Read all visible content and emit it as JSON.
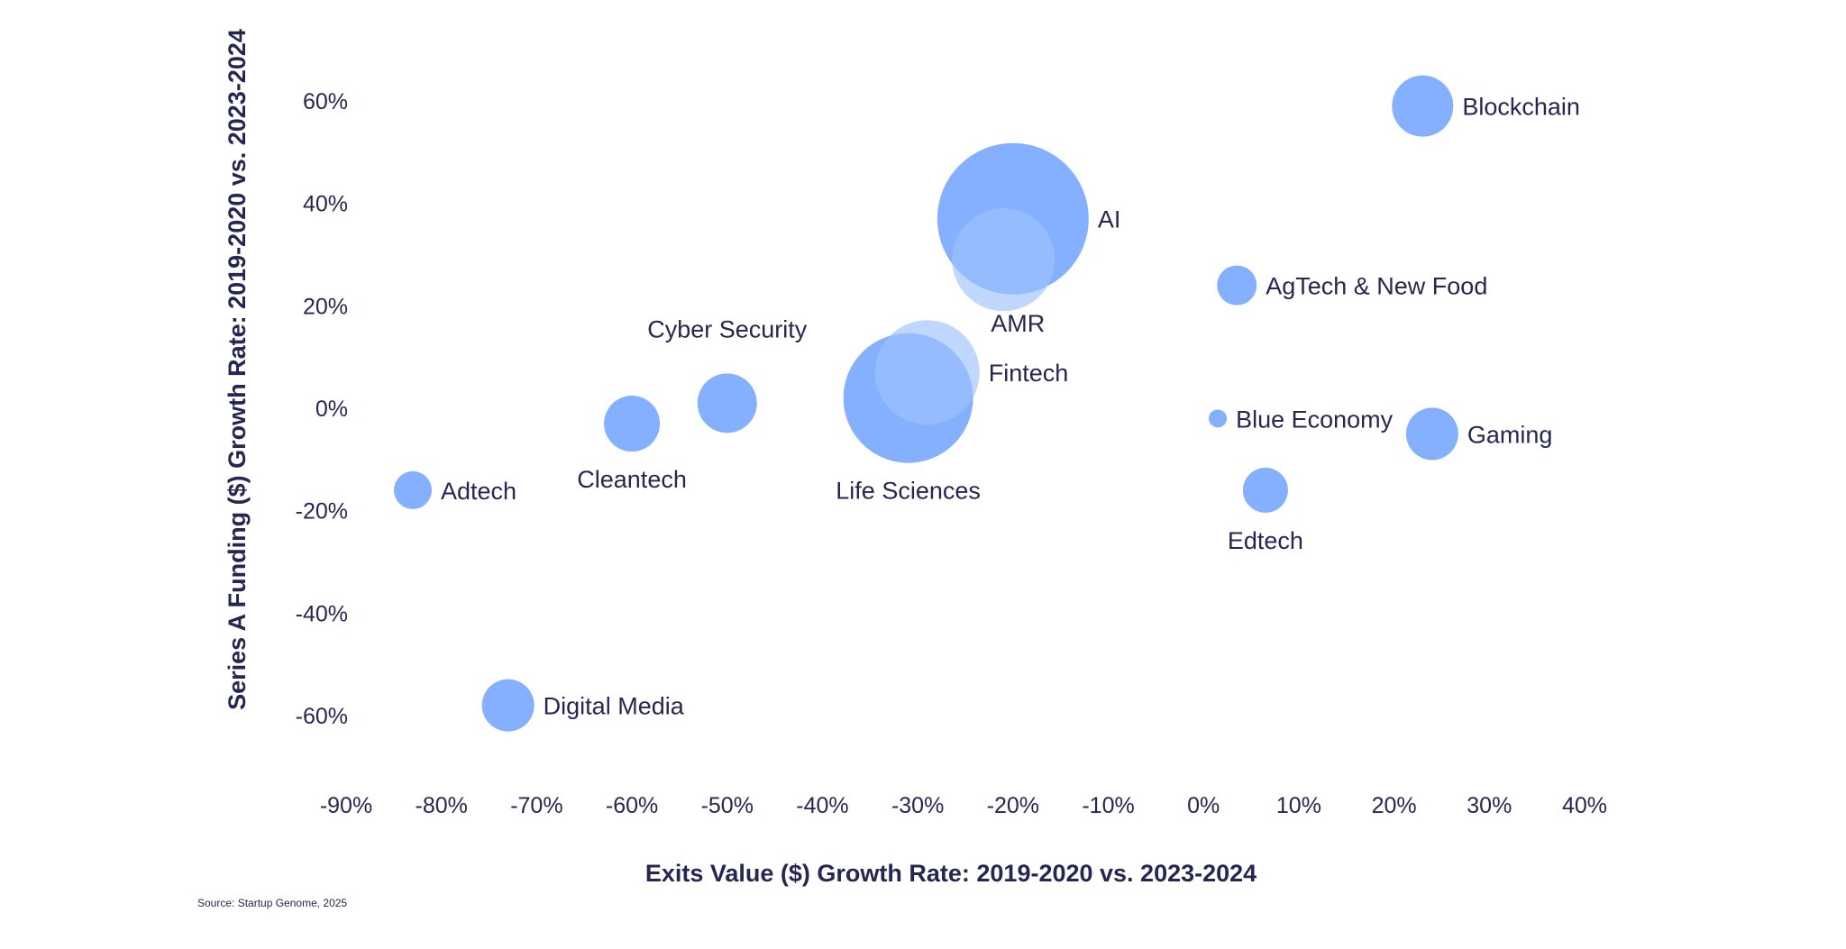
{
  "colors": {
    "text": "#262652",
    "bubble": "#5b96ff",
    "bubble_light": "#9ec3ff"
  },
  "source": "Source: Startup Genome, 2025",
  "chart_data": {
    "type": "bubble",
    "title": "",
    "xlabel": "Exits Value ($) Growth Rate: 2019-2020 vs. 2023-2024",
    "ylabel": "Series A Funding ($) Growth Rate: 2019-2020 vs. 2023-2024",
    "x_ticks": [
      "-90%",
      "-80%",
      "-70%",
      "-60%",
      "-50%",
      "-40%",
      "-30%",
      "-20%",
      "-10%",
      "0%",
      "10%",
      "20%",
      "30%",
      "40%"
    ],
    "x_tick_values": [
      -90,
      -80,
      -70,
      -60,
      -50,
      -40,
      -30,
      -20,
      -10,
      0,
      10,
      20,
      30,
      40
    ],
    "y_ticks": [
      "60%",
      "40%",
      "20%",
      "0%",
      "-20%",
      "-40%",
      "-60%"
    ],
    "y_tick_values": [
      60,
      40,
      20,
      0,
      -20,
      -40,
      -60
    ],
    "xlim": [
      -90,
      40
    ],
    "ylim": [
      -60,
      60
    ],
    "grid": false,
    "legend": "none",
    "points": [
      {
        "label": "Blockchain",
        "x": 23,
        "y": 59,
        "size": 34,
        "tone": "normal",
        "label_pos": "right"
      },
      {
        "label": "AI",
        "x": -20,
        "y": 37,
        "size": 84,
        "tone": "normal",
        "label_pos": "right"
      },
      {
        "label": "AMR",
        "x": -21,
        "y": 29,
        "size": 57,
        "tone": "light",
        "label_pos": "below-right"
      },
      {
        "label": "AgTech &  New Food",
        "x": 3.5,
        "y": 24,
        "size": 22,
        "tone": "normal",
        "label_pos": "right"
      },
      {
        "label": "Fintech",
        "x": -29,
        "y": 7,
        "size": 58,
        "tone": "light",
        "label_pos": "right"
      },
      {
        "label": "Cyber Security",
        "x": -50,
        "y": 1,
        "size": 33,
        "tone": "normal",
        "label_pos": "above"
      },
      {
        "label": "Life Sciences",
        "x": -31,
        "y": 2,
        "size": 72,
        "tone": "normal",
        "label_pos": "below"
      },
      {
        "label": "Cleantech",
        "x": -60,
        "y": -3,
        "size": 31,
        "tone": "normal",
        "label_pos": "below"
      },
      {
        "label": "Blue Economy",
        "x": 1.5,
        "y": -2,
        "size": 10,
        "tone": "normal",
        "label_pos": "right"
      },
      {
        "label": "Gaming",
        "x": 24,
        "y": -5,
        "size": 29,
        "tone": "normal",
        "label_pos": "right"
      },
      {
        "label": "Adtech",
        "x": -83,
        "y": -16,
        "size": 21,
        "tone": "normal",
        "label_pos": "right"
      },
      {
        "label": "Edtech",
        "x": 6.5,
        "y": -16,
        "size": 25,
        "tone": "normal",
        "label_pos": "below"
      },
      {
        "label": "Digital Media",
        "x": -73,
        "y": -58,
        "size": 29,
        "tone": "normal",
        "label_pos": "right"
      }
    ]
  }
}
